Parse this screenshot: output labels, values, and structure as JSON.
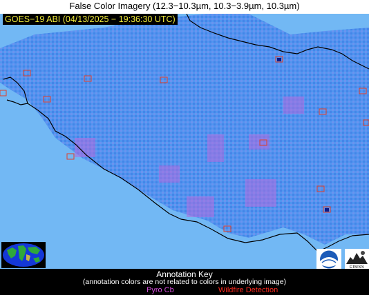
{
  "title": "False Color Imagery (12.3−10.3µm, 10.3−3.9µm, 10.3µm)",
  "timestamp": "GOES−19 ABI (04/13/2025 − 19:36:30 UTC)",
  "map": {
    "land_color": "#6fb7f5",
    "coastline_color": "#000000",
    "detection_box_color": "#e0402a"
  },
  "annotation_key": {
    "title": "Annotation Key",
    "note": "(annotation colors are not related to colors in underlying image)",
    "pyro_cb_label": "Pyro Cb",
    "pyro_cb_color": "#d64fdc",
    "wildfire_label": "Wildfire Detection",
    "wildfire_color": "#ff2a1f"
  },
  "logos": {
    "noaa_icon": "noaa-logo-icon",
    "cimss_text": "CIMSS"
  }
}
